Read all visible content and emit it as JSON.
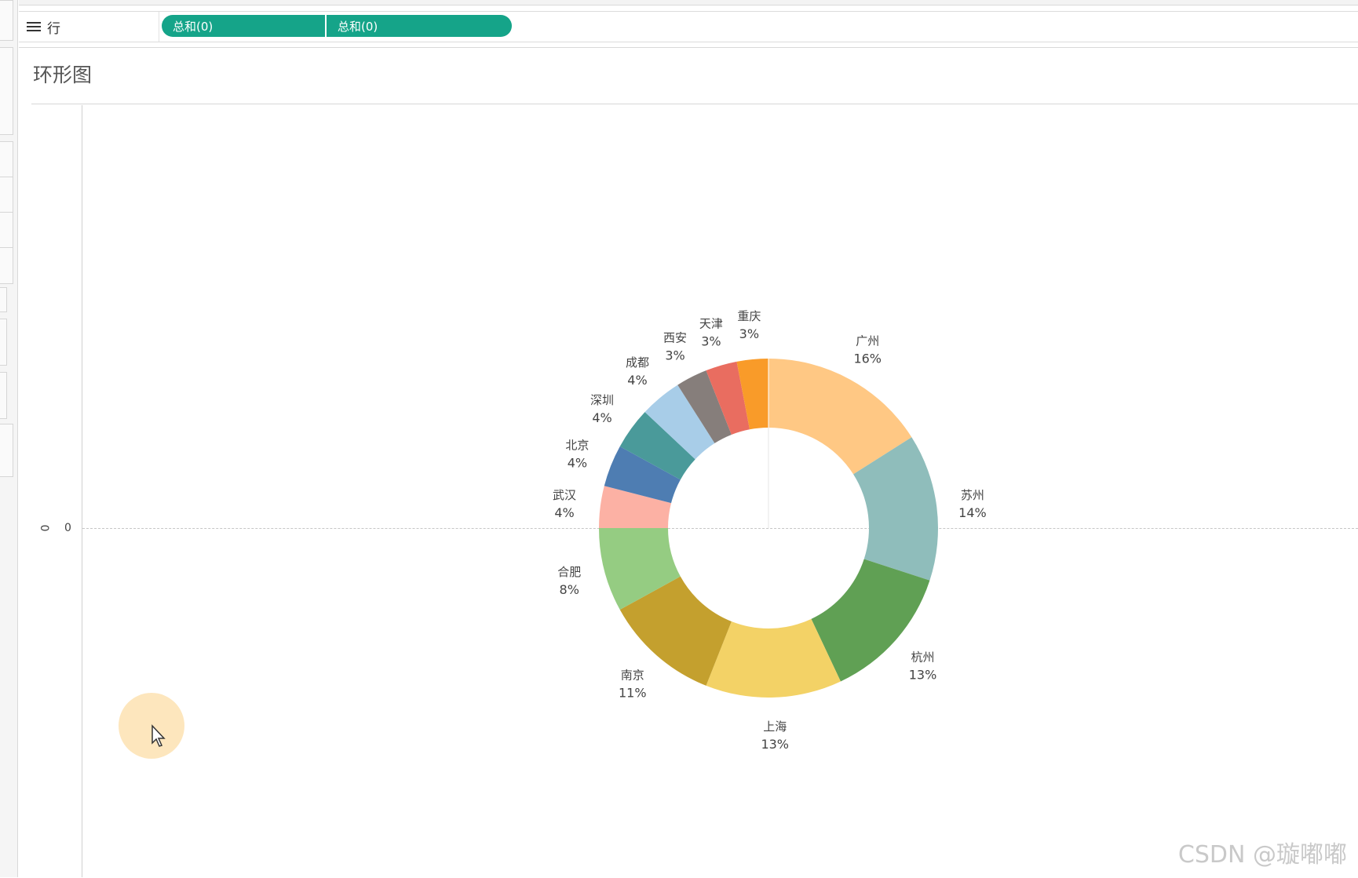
{
  "shelf": {
    "label": "行",
    "pills": [
      "总和(0)",
      "总和(0)"
    ]
  },
  "sheet": {
    "title": "环形图",
    "y_axis_title": "0",
    "y_tick": "0"
  },
  "watermark": "CSDN @璇嘟嘟",
  "chart_data": {
    "type": "pie",
    "donut": true,
    "title": "环形图",
    "categories": [
      "广州",
      "苏州",
      "杭州",
      "上海",
      "南京",
      "合肥",
      "武汉",
      "北京",
      "深圳",
      "成都",
      "西安",
      "天津",
      "重庆"
    ],
    "values": [
      16,
      14,
      13,
      13,
      11,
      8,
      4,
      4,
      4,
      4,
      3,
      3,
      3
    ],
    "labels": [
      "16%",
      "14%",
      "13%",
      "13%",
      "11%",
      "8%",
      "4%",
      "4%",
      "4%",
      "4%",
      "3%",
      "3%",
      "3%"
    ],
    "colors": [
      "#FFC884",
      "#8FBDBB",
      "#60A054",
      "#F3D266",
      "#C4A02E",
      "#95CC82",
      "#FCB1A4",
      "#4E7DB2",
      "#4A9A9A",
      "#A8CDE8",
      "#867E7B",
      "#E96D60",
      "#F99B29"
    ]
  }
}
